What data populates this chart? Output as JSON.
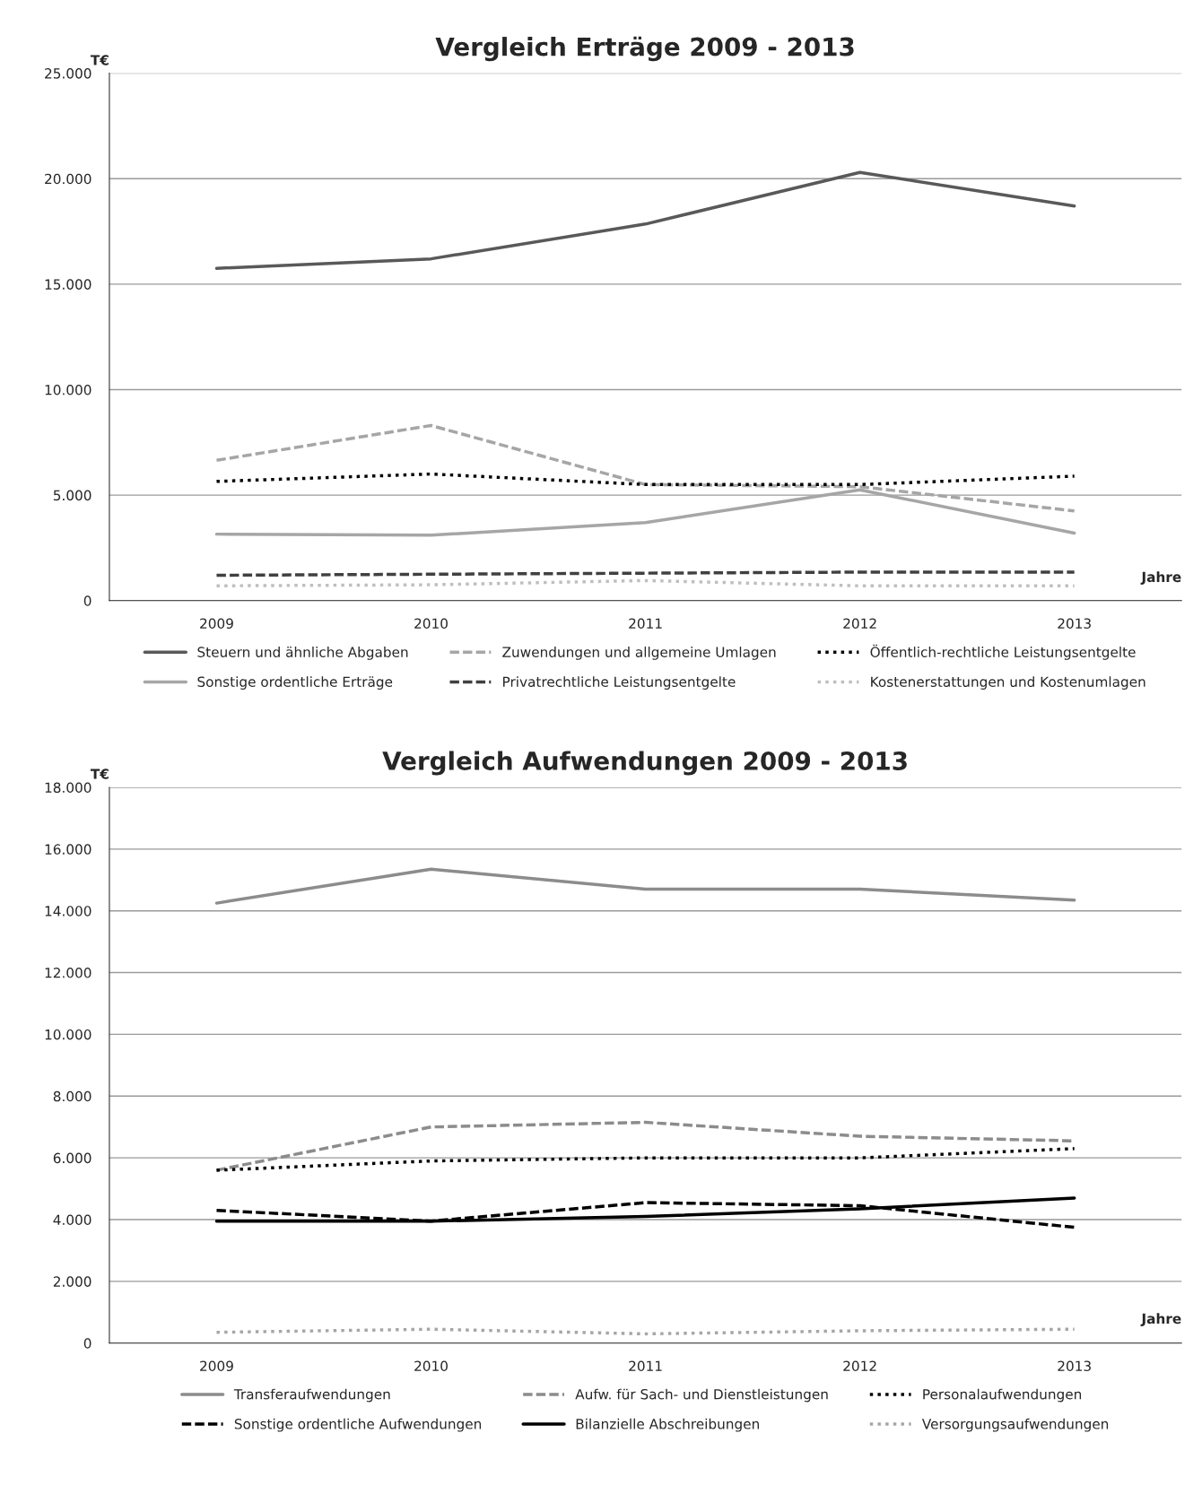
{
  "chart_data": [
    {
      "type": "line",
      "title": "Vergleich Erträge 2009 - 2013",
      "ylabel": "T€",
      "xlabel": "Jahre",
      "categories": [
        "2009",
        "2010",
        "2011",
        "2012",
        "2013"
      ],
      "ylim": [
        0,
        25000
      ],
      "yticks": [
        {
          "value": 0,
          "label": "0"
        },
        {
          "value": 5000,
          "label": "5.000"
        },
        {
          "value": 10000,
          "label": "10.000"
        },
        {
          "value": 15000,
          "label": "15.000"
        },
        {
          "value": 20000,
          "label": "20.000"
        },
        {
          "value": 25000,
          "label": "25.000"
        }
      ],
      "grid": "y",
      "legend": "bottom",
      "marker": "none",
      "series": [
        {
          "name": "Steuern und ähnliche Abgaben",
          "color": "#595959",
          "line_style": "solid",
          "values": [
            15750,
            16200,
            17850,
            20300,
            18700
          ]
        },
        {
          "name": "Zuwendungen und allgemeine Umlagen",
          "color": "#a6a6a6",
          "line_style": "dashed",
          "values": [
            6650,
            8300,
            5500,
            5400,
            4250
          ]
        },
        {
          "name": "Öffentlich-rechtliche Leistungsentgelte",
          "color": "#000000",
          "line_style": "dotted",
          "values": [
            5650,
            6000,
            5500,
            5500,
            5900
          ]
        },
        {
          "name": "Sonstige ordentliche Erträge",
          "color": "#a6a6a6",
          "line_style": "solid",
          "values": [
            3150,
            3100,
            3700,
            5250,
            3200
          ]
        },
        {
          "name": "Privatrechtliche Leistungsentgelte",
          "color": "#404040",
          "line_style": "dashed",
          "values": [
            1200,
            1250,
            1300,
            1350,
            1350
          ]
        },
        {
          "name": "Kostenerstattungen und Kostenumlagen",
          "color": "#bfbfbf",
          "line_style": "dotted",
          "values": [
            700,
            750,
            950,
            700,
            700
          ]
        }
      ]
    },
    {
      "type": "line",
      "title": "Vergleich Aufwendungen 2009 - 2013",
      "ylabel": "T€",
      "xlabel": "Jahre",
      "categories": [
        "2009",
        "2010",
        "2011",
        "2012",
        "2013"
      ],
      "ylim": [
        0,
        18000
      ],
      "yticks": [
        {
          "value": 0,
          "label": "0"
        },
        {
          "value": 2000,
          "label": "2.000"
        },
        {
          "value": 4000,
          "label": "4.000"
        },
        {
          "value": 6000,
          "label": "6.000"
        },
        {
          "value": 8000,
          "label": "8.000"
        },
        {
          "value": 10000,
          "label": "10.000"
        },
        {
          "value": 12000,
          "label": "12.000"
        },
        {
          "value": 14000,
          "label": "14.000"
        },
        {
          "value": 16000,
          "label": "16.000"
        },
        {
          "value": 18000,
          "label": "18.000"
        }
      ],
      "grid": "y",
      "legend": "bottom",
      "marker": "none",
      "series": [
        {
          "name": "Transferaufwendungen",
          "color": "#8c8c8c",
          "line_style": "solid",
          "values": [
            14250,
            15350,
            14700,
            14700,
            14350
          ]
        },
        {
          "name": "Aufw. für Sach- und Dienstleistungen",
          "color": "#8c8c8c",
          "line_style": "dashed",
          "values": [
            5600,
            7000,
            7150,
            6700,
            6550
          ]
        },
        {
          "name": "Personalaufwendungen",
          "color": "#000000",
          "line_style": "dotted",
          "values": [
            5600,
            5900,
            6000,
            6000,
            6300
          ]
        },
        {
          "name": "Sonstige ordentliche Aufwendungen",
          "color": "#000000",
          "line_style": "dashed",
          "values": [
            4300,
            3950,
            4550,
            4450,
            3750
          ]
        },
        {
          "name": "Bilanzielle Abschreibungen",
          "color": "#000000",
          "line_style": "solid",
          "values": [
            3950,
            3950,
            4100,
            4350,
            4700
          ]
        },
        {
          "name": "Versorgungsaufwendungen",
          "color": "#a6a6a6",
          "line_style": "dotted",
          "values": [
            350,
            450,
            300,
            400,
            450
          ]
        }
      ]
    }
  ]
}
